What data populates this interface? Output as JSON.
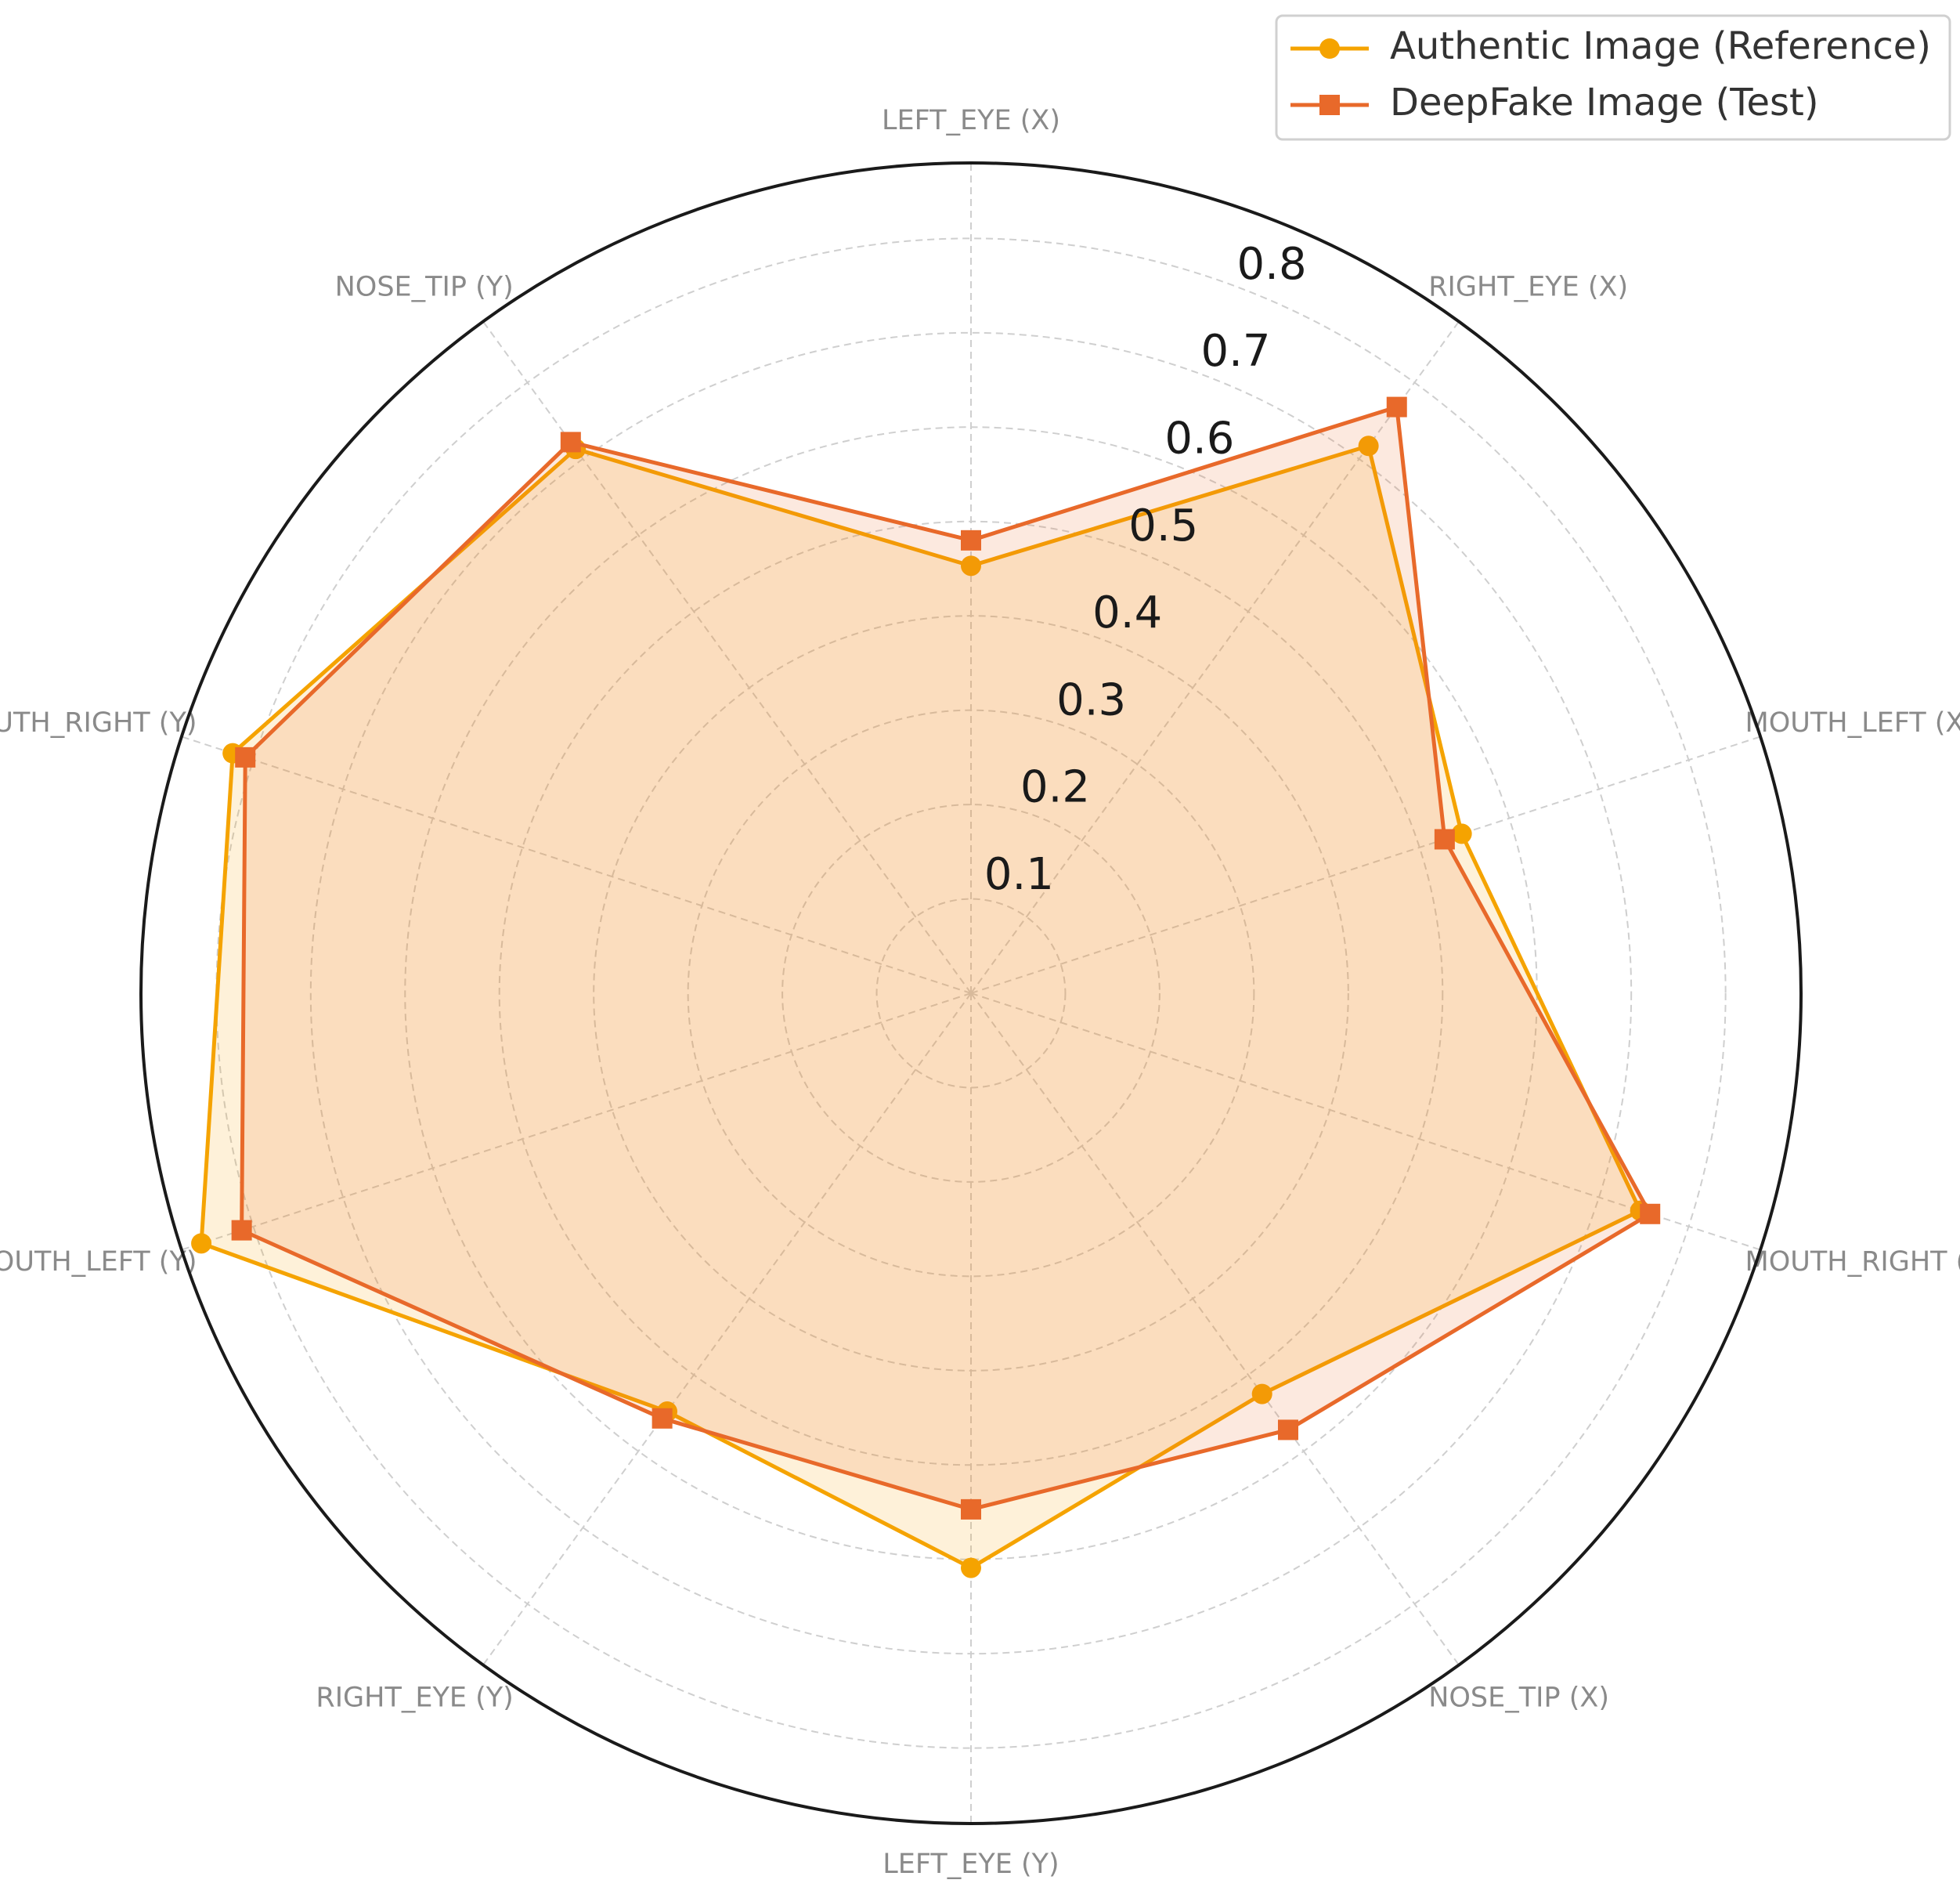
{
  "chart_data": {
    "type": "radar",
    "categories": [
      "LEFT_EYE (X)",
      "RIGHT_EYE (X)",
      "MOUTH_LEFT (X)",
      "MOUTH_RIGHT (X)",
      "NOSE_TIP (X)",
      "LEFT_EYE (Y)",
      "RIGHT_EYE (Y)",
      "MOUTH_LEFT (Y)",
      "MOUTH_RIGHT (Y)",
      "NOSE_TIP (Y)"
    ],
    "series": [
      {
        "name": "Authentic Image (Reference)",
        "color": "#f5a300",
        "marker": "circle",
        "values": [
          0.453,
          0.717,
          0.547,
          0.746,
          0.525,
          0.609,
          0.548,
          0.858,
          0.823,
          0.713
        ]
      },
      {
        "name": "DeepFake Image (Test)",
        "color": "#e8692a",
        "marker": "square",
        "values": [
          0.48,
          0.768,
          0.528,
          0.757,
          0.572,
          0.547,
          0.557,
          0.813,
          0.809,
          0.722
        ]
      }
    ],
    "ylim": [
      0,
      0.88
    ],
    "yticks": [
      0.1,
      0.2,
      0.3,
      0.4,
      0.5,
      0.6,
      0.7,
      0.8
    ],
    "grid": true,
    "legend": "upper right"
  }
}
